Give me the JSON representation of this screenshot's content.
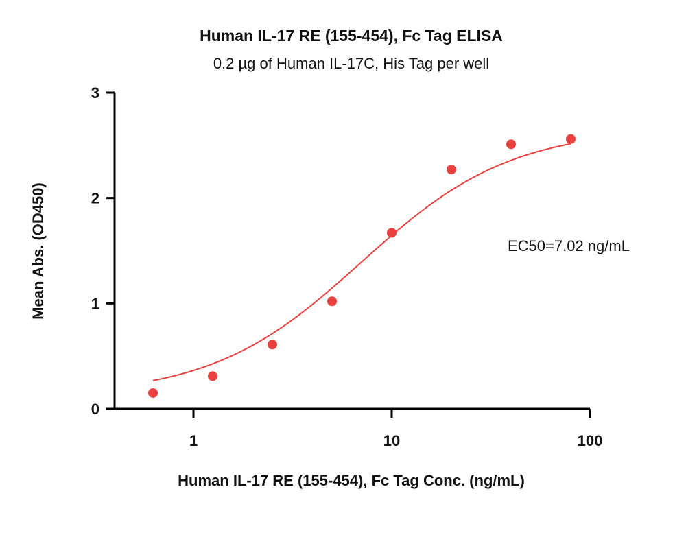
{
  "chart_data": {
    "type": "scatter",
    "title": "Human IL-17 RE (155-454), Fc Tag ELISA",
    "subtitle": "0.2 µg of Human IL-17C, His Tag per well",
    "xlabel": "Human IL-17 RE (155-454), Fc Tag Conc. (ng/mL)",
    "ylabel": "Mean Abs. (OD450)",
    "x_scale": "log",
    "xlim": [
      0.4,
      100
    ],
    "ylim": [
      0,
      3
    ],
    "x_ticks": [
      1,
      10,
      100
    ],
    "x_tick_labels": [
      "1",
      "10",
      "100"
    ],
    "y_ticks": [
      0,
      1,
      2,
      3
    ],
    "y_tick_labels": [
      "0",
      "1",
      "2",
      "3"
    ],
    "grid": false,
    "colors": {
      "series": "#e8413f",
      "axis": "#000000"
    },
    "series": [
      {
        "x": [
          0.625,
          1.25,
          2.5,
          5,
          10,
          20,
          40,
          80
        ],
        "y": [
          0.15,
          0.31,
          0.61,
          1.02,
          1.67,
          2.27,
          2.51,
          2.56
        ]
      }
    ],
    "fit": {
      "type": "4PL",
      "bottom": 0.12,
      "top": 2.66,
      "ec50": 7.02,
      "hill": 1.15
    },
    "annotations": [
      "EC50=7.02 ng/mL"
    ]
  }
}
